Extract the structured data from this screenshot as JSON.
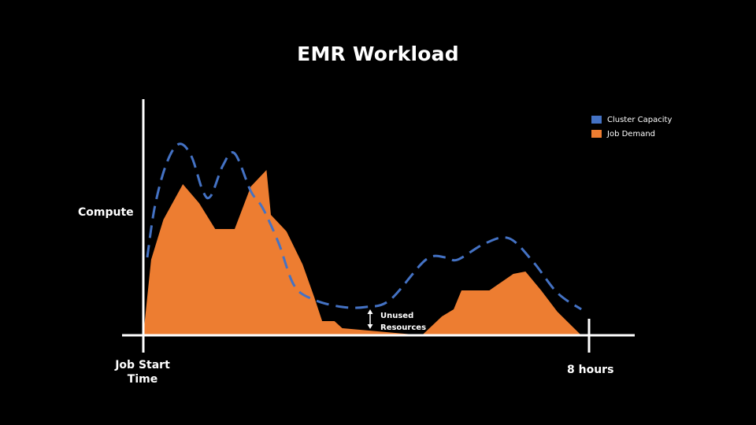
{
  "chart_data": {
    "type": "area",
    "title": "EMR Workload",
    "ylabel": "Compute",
    "x_start_label": "Job Start Time",
    "x_end_label": "8 hours",
    "annotation": "Unused Resources",
    "legend_placement": "top-right",
    "xlim": [
      0,
      8
    ],
    "ylim": [
      0,
      1
    ],
    "grid": false,
    "legend": [
      {
        "name": "Cluster Capacity",
        "color": "#4472C4",
        "style": "dashed"
      },
      {
        "name": "Job Demand",
        "color": "#ED7D31",
        "style": "filled"
      }
    ],
    "series": [
      {
        "name": "Cluster Capacity",
        "x": [
          0.07,
          0.21,
          0.42,
          0.64,
          0.86,
          1.07,
          1.21,
          1.43,
          1.64,
          1.93,
          2.14,
          2.43,
          2.71,
          3.07,
          3.57,
          4.0,
          4.43,
          5.07,
          5.43,
          5.64,
          6.14,
          6.57,
          7.0,
          7.43,
          7.86
        ],
        "y": [
          0.33,
          0.55,
          0.73,
          0.81,
          0.76,
          0.61,
          0.59,
          0.72,
          0.77,
          0.61,
          0.54,
          0.39,
          0.21,
          0.15,
          0.12,
          0.12,
          0.15,
          0.32,
          0.33,
          0.32,
          0.39,
          0.41,
          0.31,
          0.18,
          0.11
        ]
      },
      {
        "name": "Job Demand",
        "x": [
          0.0,
          0.14,
          0.36,
          0.71,
          1.0,
          1.29,
          1.64,
          1.93,
          2.21,
          2.29,
          2.57,
          2.86,
          3.07,
          3.21,
          3.43,
          3.57,
          5.0,
          5.36,
          5.57,
          5.71,
          6.21,
          6.64,
          6.86,
          7.14,
          7.43,
          7.86
        ],
        "y": [
          0.0,
          0.32,
          0.49,
          0.64,
          0.56,
          0.45,
          0.45,
          0.63,
          0.7,
          0.51,
          0.44,
          0.3,
          0.16,
          0.06,
          0.06,
          0.03,
          0.0,
          0.08,
          0.11,
          0.19,
          0.19,
          0.26,
          0.27,
          0.19,
          0.1,
          0.0
        ]
      }
    ]
  }
}
